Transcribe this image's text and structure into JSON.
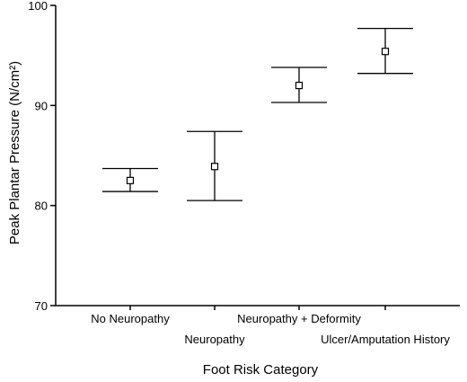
{
  "chart_data": {
    "type": "scatter",
    "title": "",
    "xlabel": "Foot Risk Category",
    "ylabel": "Peak Plantar Pressure (N/cm²)",
    "ylim": [
      70,
      100
    ],
    "yticks": [
      70,
      80,
      90,
      100
    ],
    "grid": false,
    "categories": [
      "No Neuropathy",
      "Neuropathy",
      "Neuropathy + Deformity",
      "Ulcer/Amputation History"
    ],
    "series": [
      {
        "means": [
          82.5,
          83.9,
          92.0,
          95.4
        ],
        "lower": [
          81.4,
          80.5,
          90.3,
          93.2
        ],
        "upper": [
          83.7,
          87.4,
          93.8,
          97.7
        ]
      }
    ]
  }
}
